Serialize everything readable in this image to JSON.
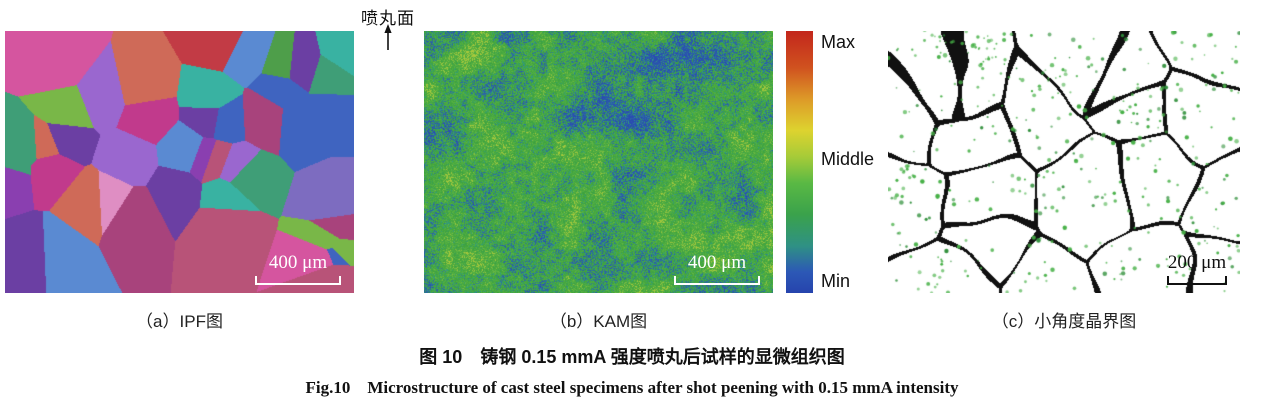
{
  "figure": {
    "surface_label": "喷丸面",
    "caption_zh": "图 10　铸钢 0.15 mmA 强度喷丸后试样的显微组织图",
    "caption_en": "Fig.10　Microstructure of cast steel specimens after shot peening with 0.15 mmA intensity"
  },
  "panels": {
    "a": {
      "label": "（a）IPF图",
      "scale_bar": "400 μm"
    },
    "b": {
      "label": "（b）KAM图",
      "scale_bar": "400 μm"
    },
    "c": {
      "label": "（c）小角度晶界图",
      "scale_bar": "200 μm"
    }
  },
  "colorbar": {
    "labels": {
      "max": "Max",
      "middle": "Middle",
      "min": "Min"
    },
    "stops": [
      "#c3261c 0%",
      "#d0521f 14%",
      "#dd9a28 26%",
      "#ddd32f 38%",
      "#a6cb38 48%",
      "#5ab944 58%",
      "#3aa24b 70%",
      "#2f9184 82%",
      "#2c58b6 92%",
      "#2644ad 100%"
    ]
  },
  "render": {
    "ipf_palette": [
      "#c13a8c",
      "#d5559f",
      "#df8ec3",
      "#a8437c",
      "#8a3fb0",
      "#6b3fa3",
      "#5a4fc0",
      "#9a67cf",
      "#c23b45",
      "#b03040",
      "#cf6a58",
      "#4e9e4a",
      "#79b748",
      "#3f9e77",
      "#39b2a2",
      "#3f64c0",
      "#5a8ad2",
      "#7d6cc0",
      "#b85378",
      "#9c2f62"
    ],
    "kam": {
      "blue": "#2a4cb2",
      "teal": "#2f9a8a",
      "green": "#3da23e",
      "green2": "#58b243",
      "yellow": "#a9c93c"
    },
    "lagb": {
      "boundary": "#111111",
      "dot": "#46b046",
      "dot_dark": "#2f8f3a",
      "background": "#ffffff"
    }
  }
}
